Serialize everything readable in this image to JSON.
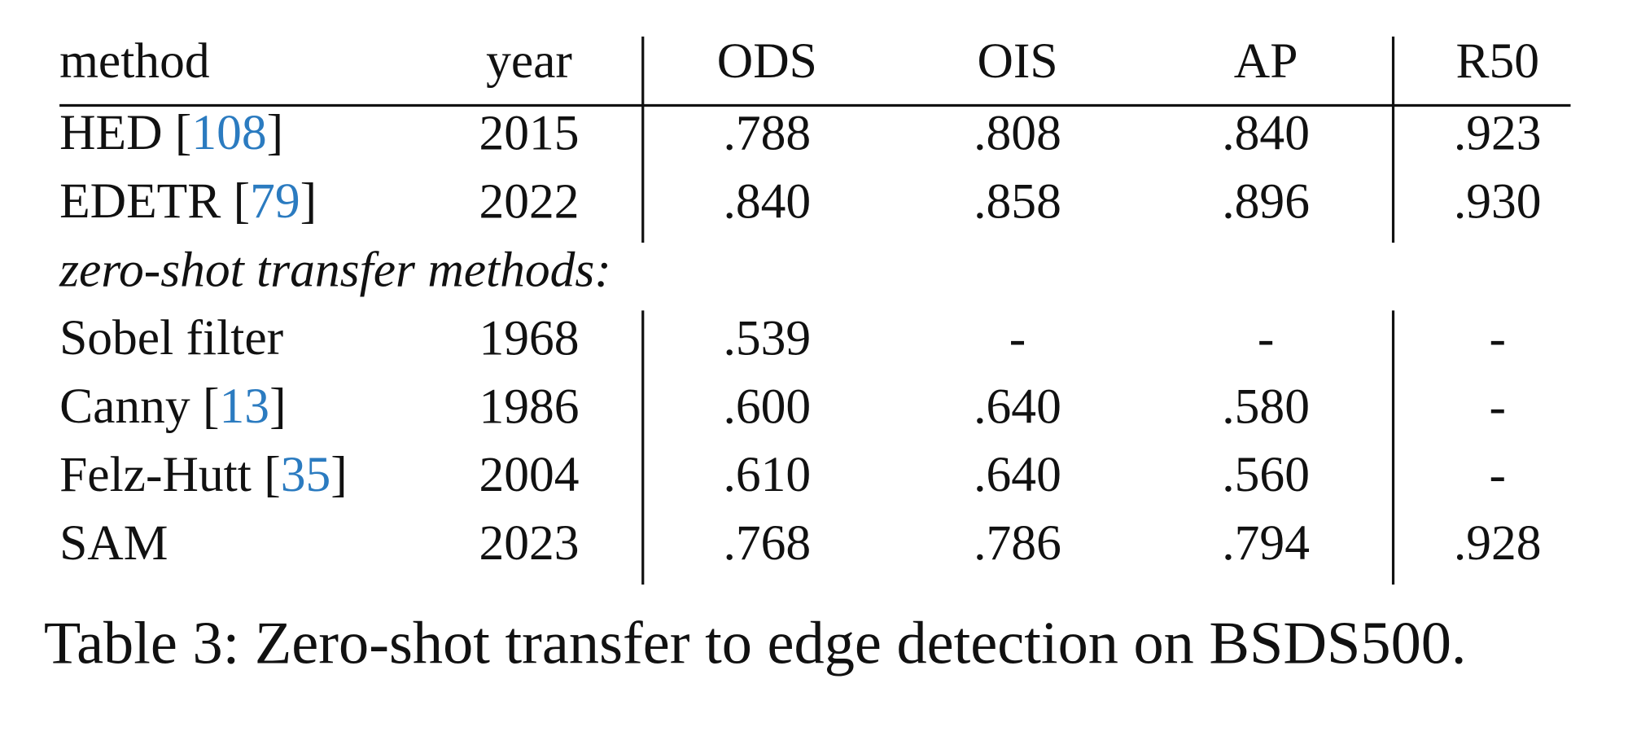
{
  "table": {
    "header": [
      "method",
      "year",
      "ODS",
      "OIS",
      "AP",
      "R50"
    ],
    "groups": [
      {
        "rows": [
          [
            [
              "HED [",
              "108",
              "]"
            ],
            "2015",
            ".788",
            ".808",
            ".840",
            ".923"
          ],
          [
            [
              "EDETR [",
              "79",
              "]"
            ],
            "2022",
            ".840",
            ".858",
            ".896",
            ".930"
          ]
        ]
      },
      {
        "label": "zero-shot transfer methods:",
        "rows": [
          [
            [
              "Sobel filter"
            ],
            "1968",
            ".539",
            "-",
            "-",
            "-"
          ],
          [
            [
              "Canny [",
              "13",
              "]"
            ],
            "1986",
            ".600",
            ".640",
            ".580",
            "-"
          ],
          [
            [
              "Felz-Hutt [",
              "35",
              "]"
            ],
            "2004",
            ".610",
            ".640",
            ".560",
            "-"
          ],
          [
            [
              "SAM"
            ],
            "2023",
            ".768",
            ".786",
            ".794",
            ".928"
          ]
        ]
      }
    ]
  },
  "caption": "Table 3: Zero-shot transfer to edge detection on BSDS500."
}
